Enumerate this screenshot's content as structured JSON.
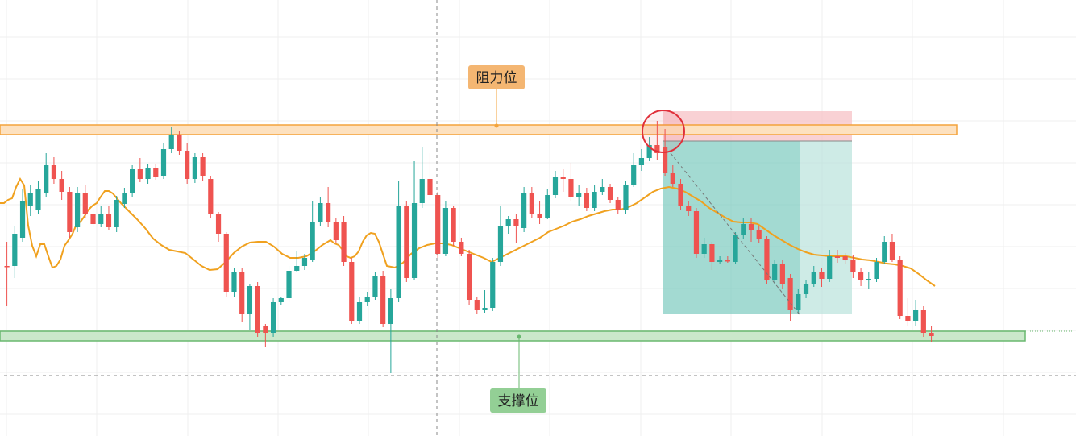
{
  "chart_data": {
    "type": "candlestick",
    "grid": true,
    "ylim": [
      0,
      541
    ],
    "colors": {
      "up": "#26a69a",
      "down": "#ef5350",
      "ma": "#f0a11f",
      "resistance_fill": "#fde1bf",
      "resistance_stroke": "#f3a33b",
      "support_fill": "#cbe8cb",
      "support_stroke": "#69b86f",
      "resistance_tag": "#f4b672",
      "support_tag": "#93cf95",
      "stop_zone": "#f7c2c6",
      "profit_zone": "#7ccbbf",
      "profit_zone_light": "#b9e3dc",
      "highlight_circle": "#e0303a"
    },
    "annotations": {
      "resistance_label": "阻力位",
      "support_label": "支撑位"
    },
    "levels": {
      "resistance": 161,
      "support": 417
    },
    "candles": [
      [
        0,
        330,
        330,
        300,
        380
      ],
      [
        1,
        330,
        290,
        280,
        345
      ],
      [
        2,
        295,
        250,
        235,
        300
      ],
      [
        3,
        255,
        240,
        230,
        268
      ],
      [
        4,
        260,
        235,
        225,
        265
      ],
      [
        5,
        240,
        205,
        190,
        245
      ],
      [
        6,
        205,
        222,
        195,
        228
      ],
      [
        7,
        222,
        238,
        212,
        248
      ],
      [
        8,
        238,
        288,
        232,
        295
      ],
      [
        9,
        282,
        240,
        232,
        288
      ],
      [
        10,
        240,
        265,
        230,
        270
      ],
      [
        11,
        265,
        278,
        258,
        282
      ],
      [
        12,
        278,
        265,
        255,
        282
      ],
      [
        13,
        265,
        282,
        255,
        286
      ],
      [
        14,
        282,
        248,
        243,
        288
      ],
      [
        15,
        253,
        240,
        233,
        258
      ],
      [
        16,
        240,
        210,
        205,
        244
      ],
      [
        17,
        210,
        222,
        196,
        226
      ],
      [
        18,
        222,
        208,
        203,
        228
      ],
      [
        19,
        208,
        220,
        203,
        223
      ],
      [
        20,
        218,
        185,
        178,
        222
      ],
      [
        21,
        185,
        167,
        157,
        190
      ],
      [
        22,
        167,
        187,
        162,
        192
      ],
      [
        23,
        187,
        222,
        178,
        228
      ],
      [
        24,
        222,
        195,
        190,
        227
      ],
      [
        25,
        195,
        218,
        190,
        224
      ],
      [
        26,
        222,
        265,
        218,
        270
      ],
      [
        27,
        265,
        290,
        263,
        300
      ],
      [
        28,
        290,
        362,
        288,
        368
      ],
      [
        29,
        362,
        338,
        332,
        368
      ],
      [
        30,
        338,
        390,
        332,
        400
      ],
      [
        31,
        390,
        355,
        352,
        410
      ],
      [
        32,
        355,
        413,
        350,
        418
      ],
      [
        33,
        405,
        413,
        402,
        430
      ],
      [
        34,
        413,
        375,
        370,
        418
      ],
      [
        35,
        375,
        370,
        368,
        378
      ],
      [
        36,
        370,
        336,
        330,
        375
      ],
      [
        37,
        336,
        330,
        312,
        338
      ],
      [
        38,
        330,
        320,
        315,
        335
      ],
      [
        39,
        322,
        275,
        250,
        325
      ],
      [
        40,
        275,
        252,
        245,
        280
      ],
      [
        41,
        252,
        275,
        232,
        282
      ],
      [
        42,
        275,
        298,
        270,
        302
      ],
      [
        43,
        275,
        325,
        268,
        330
      ],
      [
        44,
        325,
        398,
        320,
        402
      ],
      [
        45,
        398,
        375,
        368,
        402
      ],
      [
        46,
        375,
        368,
        362,
        380
      ],
      [
        47,
        368,
        342,
        338,
        372
      ],
      [
        48,
        342,
        402,
        336,
        406
      ],
      [
        49,
        402,
        370,
        358,
        463
      ],
      [
        50,
        370,
        255,
        225,
        375
      ],
      [
        51,
        255,
        345,
        250,
        350
      ],
      [
        52,
        345,
        252,
        200,
        348
      ],
      [
        53,
        252,
        222,
        183,
        258
      ],
      [
        54,
        222,
        242,
        190,
        248
      ],
      [
        55,
        242,
        315,
        238,
        320
      ],
      [
        56,
        315,
        258,
        250,
        318
      ],
      [
        57,
        258,
        300,
        255,
        305
      ],
      [
        58,
        300,
        315,
        295,
        318
      ],
      [
        59,
        315,
        372,
        310,
        378
      ],
      [
        60,
        372,
        385,
        368,
        390
      ],
      [
        61,
        385,
        382,
        360,
        388
      ],
      [
        62,
        382,
        325,
        320,
        386
      ],
      [
        63,
        325,
        280,
        255,
        330
      ],
      [
        64,
        280,
        272,
        268,
        290
      ],
      [
        65,
        272,
        280,
        265,
        302
      ],
      [
        66,
        283,
        240,
        232,
        288
      ],
      [
        67,
        240,
        265,
        232,
        270
      ],
      [
        68,
        265,
        270,
        250,
        278
      ],
      [
        69,
        270,
        242,
        235,
        272
      ],
      [
        70,
        242,
        220,
        212,
        246
      ],
      [
        71,
        220,
        222,
        210,
        238
      ],
      [
        72,
        222,
        245,
        202,
        250
      ],
      [
        73,
        245,
        240,
        230,
        255
      ],
      [
        74,
        240,
        258,
        233,
        262
      ],
      [
        75,
        258,
        238,
        230,
        262
      ],
      [
        76,
        238,
        232,
        222,
        242
      ],
      [
        77,
        232,
        248,
        228,
        252
      ],
      [
        78,
        248,
        260,
        245,
        265
      ],
      [
        79,
        260,
        230,
        225,
        265
      ],
      [
        80,
        230,
        205,
        190,
        232
      ],
      [
        81,
        205,
        196,
        185,
        212
      ],
      [
        82,
        196,
        180,
        170,
        200
      ],
      [
        83,
        180,
        190,
        150,
        198
      ],
      [
        84,
        182,
        215,
        160,
        218
      ],
      [
        85,
        215,
        228,
        205,
        232
      ],
      [
        86,
        228,
        255,
        222,
        260
      ],
      [
        87,
        255,
        262,
        250,
        268
      ],
      [
        88,
        262,
        315,
        258,
        320
      ],
      [
        89,
        315,
        303,
        295,
        320
      ],
      [
        90,
        303,
        325,
        300,
        335
      ],
      [
        91,
        325,
        323,
        318,
        328
      ],
      [
        92,
        323,
        323,
        318,
        326
      ],
      [
        93,
        325,
        292,
        288,
        328
      ],
      [
        94,
        292,
        278,
        270,
        296
      ],
      [
        95,
        278,
        285,
        270,
        300
      ],
      [
        96,
        285,
        297,
        280,
        302
      ],
      [
        97,
        297,
        348,
        293,
        352
      ],
      [
        98,
        348,
        328,
        322,
        352
      ],
      [
        99,
        328,
        352,
        322,
        358
      ],
      [
        100,
        345,
        385,
        340,
        398
      ],
      [
        101,
        385,
        365,
        358,
        390
      ],
      [
        102,
        365,
        352,
        348,
        370
      ],
      [
        103,
        352,
        338,
        330,
        356
      ],
      [
        104,
        338,
        346,
        333,
        356
      ],
      [
        105,
        346,
        318,
        310,
        350
      ],
      [
        106,
        318,
        320,
        310,
        326
      ],
      [
        107,
        318,
        322,
        314,
        328
      ],
      [
        108,
        322,
        338,
        316,
        345
      ],
      [
        109,
        338,
        348,
        332,
        355
      ],
      [
        110,
        348,
        346,
        338,
        358
      ],
      [
        111,
        346,
        325,
        320,
        350
      ],
      [
        112,
        325,
        300,
        293,
        328
      ],
      [
        113,
        300,
        322,
        290,
        325
      ],
      [
        114,
        322,
        392,
        318,
        396
      ],
      [
        115,
        392,
        398,
        370,
        404
      ],
      [
        116,
        398,
        385,
        372,
        404
      ],
      [
        117,
        385,
        413,
        380,
        418
      ],
      [
        118,
        413,
        417,
        405,
        424
      ]
    ],
    "ma": [
      [
        0,
        252
      ],
      [
        5,
        252
      ],
      [
        10,
        248
      ],
      [
        15,
        246
      ],
      [
        20,
        232
      ],
      [
        25,
        222
      ],
      [
        30,
        230
      ],
      [
        35,
        280
      ],
      [
        40,
        305
      ],
      [
        45,
        318
      ],
      [
        50,
        303
      ],
      [
        55,
        303
      ],
      [
        60,
        318
      ],
      [
        65,
        332
      ],
      [
        70,
        330
      ],
      [
        75,
        322
      ],
      [
        80,
        305
      ],
      [
        85,
        298
      ],
      [
        90,
        290
      ],
      [
        95,
        278
      ],
      [
        100,
        275
      ],
      [
        105,
        268
      ],
      [
        110,
        260
      ],
      [
        115,
        255
      ],
      [
        120,
        252
      ],
      [
        125,
        244
      ],
      [
        130,
        237
      ],
      [
        135,
        237
      ],
      [
        140,
        240
      ],
      [
        150,
        252
      ],
      [
        160,
        262
      ],
      [
        170,
        272
      ],
      [
        180,
        283
      ],
      [
        190,
        296
      ],
      [
        200,
        304
      ],
      [
        210,
        310
      ],
      [
        220,
        312
      ],
      [
        230,
        314
      ],
      [
        240,
        322
      ],
      [
        250,
        330
      ],
      [
        260,
        335
      ],
      [
        270,
        334
      ],
      [
        280,
        325
      ],
      [
        290,
        314
      ],
      [
        300,
        306
      ],
      [
        310,
        301
      ],
      [
        320,
        300
      ],
      [
        330,
        300
      ],
      [
        340,
        306
      ],
      [
        350,
        315
      ],
      [
        360,
        320
      ],
      [
        370,
        320
      ],
      [
        380,
        318
      ],
      [
        390,
        312
      ],
      [
        400,
        304
      ],
      [
        405,
        301
      ],
      [
        410,
        298
      ],
      [
        415,
        302
      ],
      [
        420,
        304
      ],
      [
        425,
        310
      ],
      [
        430,
        318
      ],
      [
        435,
        320
      ],
      [
        440,
        318
      ],
      [
        445,
        312
      ],
      [
        450,
        300
      ],
      [
        455,
        292
      ],
      [
        460,
        289
      ],
      [
        465,
        290
      ],
      [
        470,
        300
      ],
      [
        475,
        315
      ],
      [
        480,
        330
      ],
      [
        490,
        332
      ],
      [
        500,
        326
      ],
      [
        510,
        315
      ],
      [
        520,
        308
      ],
      [
        530,
        304
      ],
      [
        540,
        302
      ],
      [
        550,
        302
      ],
      [
        560,
        304
      ],
      [
        570,
        308
      ],
      [
        580,
        312
      ],
      [
        590,
        316
      ],
      [
        600,
        320
      ],
      [
        610,
        325
      ],
      [
        620,
        320
      ],
      [
        630,
        315
      ],
      [
        640,
        310
      ],
      [
        650,
        305
      ],
      [
        660,
        300
      ],
      [
        670,
        295
      ],
      [
        680,
        288
      ],
      [
        690,
        284
      ],
      [
        700,
        280
      ],
      [
        710,
        275
      ],
      [
        720,
        272
      ],
      [
        730,
        268
      ],
      [
        740,
        265
      ],
      [
        750,
        262
      ],
      [
        760,
        260
      ],
      [
        770,
        260
      ],
      [
        780,
        257
      ],
      [
        790,
        252
      ],
      [
        800,
        245
      ],
      [
        810,
        238
      ],
      [
        820,
        234
      ],
      [
        830,
        232
      ],
      [
        840,
        234
      ],
      [
        850,
        238
      ],
      [
        860,
        244
      ],
      [
        870,
        250
      ],
      [
        880,
        258
      ],
      [
        890,
        264
      ],
      [
        900,
        270
      ],
      [
        910,
        275
      ],
      [
        920,
        276
      ],
      [
        930,
        276
      ],
      [
        940,
        278
      ],
      [
        950,
        285
      ],
      [
        960,
        292
      ],
      [
        970,
        298
      ],
      [
        980,
        304
      ],
      [
        990,
        309
      ],
      [
        1000,
        313
      ],
      [
        1010,
        316
      ],
      [
        1020,
        317
      ],
      [
        1030,
        318
      ],
      [
        1040,
        318
      ],
      [
        1050,
        318
      ],
      [
        1060,
        320
      ],
      [
        1070,
        322
      ],
      [
        1080,
        323
      ],
      [
        1090,
        325
      ],
      [
        1100,
        327
      ],
      [
        1110,
        328
      ],
      [
        1120,
        330
      ],
      [
        1130,
        333
      ],
      [
        1140,
        340
      ],
      [
        1150,
        348
      ],
      [
        1160,
        355
      ]
    ]
  }
}
